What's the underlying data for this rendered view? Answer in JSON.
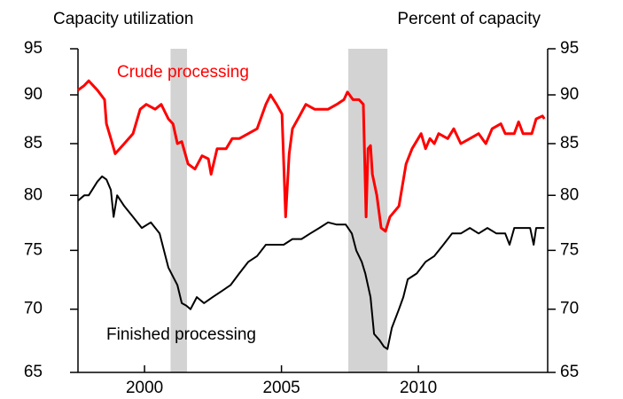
{
  "chart_data": {
    "type": "line",
    "title": "Capacity utilization",
    "y2_title": "Percent of capacity",
    "log_y": true,
    "xlim": [
      1997.57,
      2014.72
    ],
    "xticks": [
      2000,
      2005,
      2010
    ],
    "ylim": [
      65,
      95
    ],
    "yticks": [
      65,
      70,
      75,
      80,
      85,
      90,
      95
    ],
    "y2lim": [
      65,
      95
    ],
    "y2ticks": [
      65,
      70,
      75,
      80,
      85,
      90,
      95
    ],
    "shaded_periods": [
      [
        2000.95,
        2001.55
      ],
      [
        2007.44,
        2008.87
      ]
    ],
    "shade_color": "#d3d3d3",
    "series": [
      {
        "name": "Crude processing",
        "color": "#ff0000",
        "x": [
          1997.57,
          1997.8,
          1997.96,
          1998.28,
          1998.54,
          1998.61,
          1998.77,
          1998.93,
          1999.26,
          1999.58,
          1999.84,
          2000.06,
          2000.39,
          2000.61,
          2000.87,
          2001.04,
          2001.2,
          2001.36,
          2001.59,
          2001.84,
          2002.1,
          2002.33,
          2002.43,
          2002.65,
          2002.98,
          2003.2,
          2003.46,
          2003.79,
          2004.11,
          2004.43,
          2004.6,
          2004.82,
          2005.02,
          2005.15,
          2005.28,
          2005.4,
          2005.66,
          2005.89,
          2006.21,
          2006.44,
          2006.7,
          2007.02,
          2007.28,
          2007.41,
          2007.61,
          2007.83,
          2007.99,
          2008.09,
          2008.16,
          2008.25,
          2008.32,
          2008.48,
          2008.64,
          2008.8,
          2008.96,
          2009.29,
          2009.55,
          2009.77,
          2010.1,
          2010.26,
          2010.42,
          2010.58,
          2010.74,
          2011.07,
          2011.29,
          2011.55,
          2011.88,
          2012.2,
          2012.46,
          2012.69,
          2013.01,
          2013.17,
          2013.5,
          2013.66,
          2013.82,
          2014.14,
          2014.3,
          2014.53,
          2014.6
        ],
        "values": [
          90.5,
          91,
          91.5,
          90.5,
          89.5,
          87,
          85.5,
          84,
          85,
          86,
          88.5,
          89,
          88.5,
          89,
          87.5,
          87,
          85,
          85.2,
          83,
          82.5,
          83.8,
          83.5,
          82,
          84.5,
          84.5,
          85.5,
          85.5,
          86,
          86.5,
          89,
          90,
          89,
          88,
          78,
          84,
          86.5,
          87.8,
          89,
          88.5,
          88.5,
          88.5,
          89,
          89.5,
          90.3,
          89.5,
          89.5,
          89,
          78,
          84.5,
          84.8,
          82,
          80,
          77,
          76.7,
          78,
          79,
          83,
          84.5,
          86,
          84.5,
          85.5,
          85,
          86,
          85.5,
          86.5,
          85,
          85.5,
          86,
          85,
          86.5,
          87,
          86,
          86,
          87.2,
          86,
          86,
          87.5,
          87.8,
          87.5
        ]
      },
      {
        "name": "Finished processing",
        "color": "#000000",
        "x": [
          1997.57,
          1997.8,
          1997.96,
          1998.28,
          1998.45,
          1998.61,
          1998.77,
          1998.87,
          1999.0,
          1999.26,
          1999.58,
          1999.9,
          2000.23,
          2000.55,
          2000.71,
          2000.87,
          2001.2,
          2001.36,
          2001.52,
          2001.68,
          2001.91,
          2002.17,
          2002.49,
          2002.82,
          2003.14,
          2003.46,
          2003.79,
          2004.11,
          2004.43,
          2004.76,
          2005.08,
          2005.4,
          2005.73,
          2006.05,
          2006.38,
          2006.7,
          2007.02,
          2007.35,
          2007.57,
          2007.73,
          2007.93,
          2008.06,
          2008.25,
          2008.38,
          2008.58,
          2008.74,
          2008.87,
          2009.03,
          2009.29,
          2009.45,
          2009.61,
          2009.94,
          2010.26,
          2010.58,
          2010.91,
          2011.23,
          2011.55,
          2011.88,
          2012.2,
          2012.52,
          2012.85,
          2013.17,
          2013.33,
          2013.5,
          2013.82,
          2014.08,
          2014.21,
          2014.3,
          2014.53,
          2014.6
        ],
        "values": [
          79.5,
          80,
          80,
          81.3,
          81.8,
          81.5,
          80.5,
          78,
          80,
          79,
          78,
          77,
          77.5,
          76.5,
          75,
          73.5,
          72,
          70.5,
          70.3,
          70,
          71,
          70.5,
          71,
          71.5,
          72,
          73,
          74,
          74.5,
          75.5,
          75.5,
          75.5,
          76,
          76,
          76.5,
          77,
          77.5,
          77.3,
          77.3,
          76.5,
          75,
          74,
          73,
          71,
          68,
          67.5,
          67,
          66.8,
          68.5,
          70,
          71,
          72.5,
          73,
          74,
          74.5,
          75.5,
          76.5,
          76.5,
          77,
          76.5,
          77,
          76.5,
          76.5,
          75.5,
          77,
          77,
          77,
          75.5,
          77,
          77,
          77
        ]
      }
    ]
  }
}
